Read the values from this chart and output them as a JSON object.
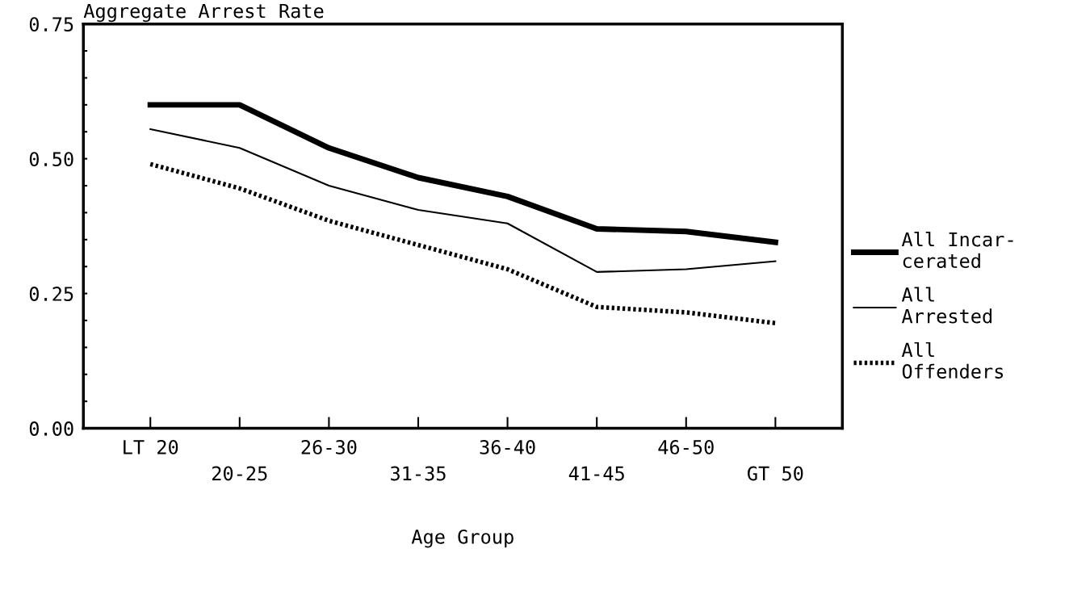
{
  "chart_data": {
    "type": "line",
    "ylabel": "Aggregate Arrest Rate",
    "xlabel": "Age Group",
    "categories": [
      "LT 20",
      "20-25",
      "26-30",
      "31-35",
      "36-40",
      "41-45",
      "46-50",
      "GT 50"
    ],
    "ylim": [
      0,
      0.75
    ],
    "yticks": [
      {
        "value": 0,
        "label": "0.00"
      },
      {
        "value": 0.05,
        "label": null
      },
      {
        "value": 0.1,
        "label": null
      },
      {
        "value": 0.15,
        "label": null
      },
      {
        "value": 0.2,
        "label": null
      },
      {
        "value": 0.25,
        "label": "0.25"
      },
      {
        "value": 0.3,
        "label": null
      },
      {
        "value": 0.35,
        "label": null
      },
      {
        "value": 0.4,
        "label": null
      },
      {
        "value": 0.45,
        "label": null
      },
      {
        "value": 0.5,
        "label": "0.50"
      },
      {
        "value": 0.55,
        "label": null
      },
      {
        "value": 0.6,
        "label": null
      },
      {
        "value": 0.65,
        "label": null
      },
      {
        "value": 0.7,
        "label": null
      },
      {
        "value": 0.75,
        "label": "0.75"
      }
    ],
    "grid": false,
    "legend": "right",
    "marker": "none",
    "series": [
      {
        "name": "All Incar-\ncerated",
        "color": "#000000",
        "line_style": "solid",
        "values": [
          0.6,
          0.6,
          0.52,
          0.465,
          0.43,
          0.37,
          0.365,
          0.345
        ]
      },
      {
        "name": "All\nArrested",
        "color": "#000000",
        "line_style": "solid",
        "values": [
          0.555,
          0.52,
          0.45,
          0.405,
          0.38,
          0.29,
          0.295,
          0.31
        ]
      },
      {
        "name": "All\nOffenders",
        "color": "#000000",
        "line_style": "dotted",
        "values": [
          0.49,
          0.445,
          0.385,
          0.34,
          0.295,
          0.225,
          0.215,
          0.195
        ]
      }
    ]
  }
}
